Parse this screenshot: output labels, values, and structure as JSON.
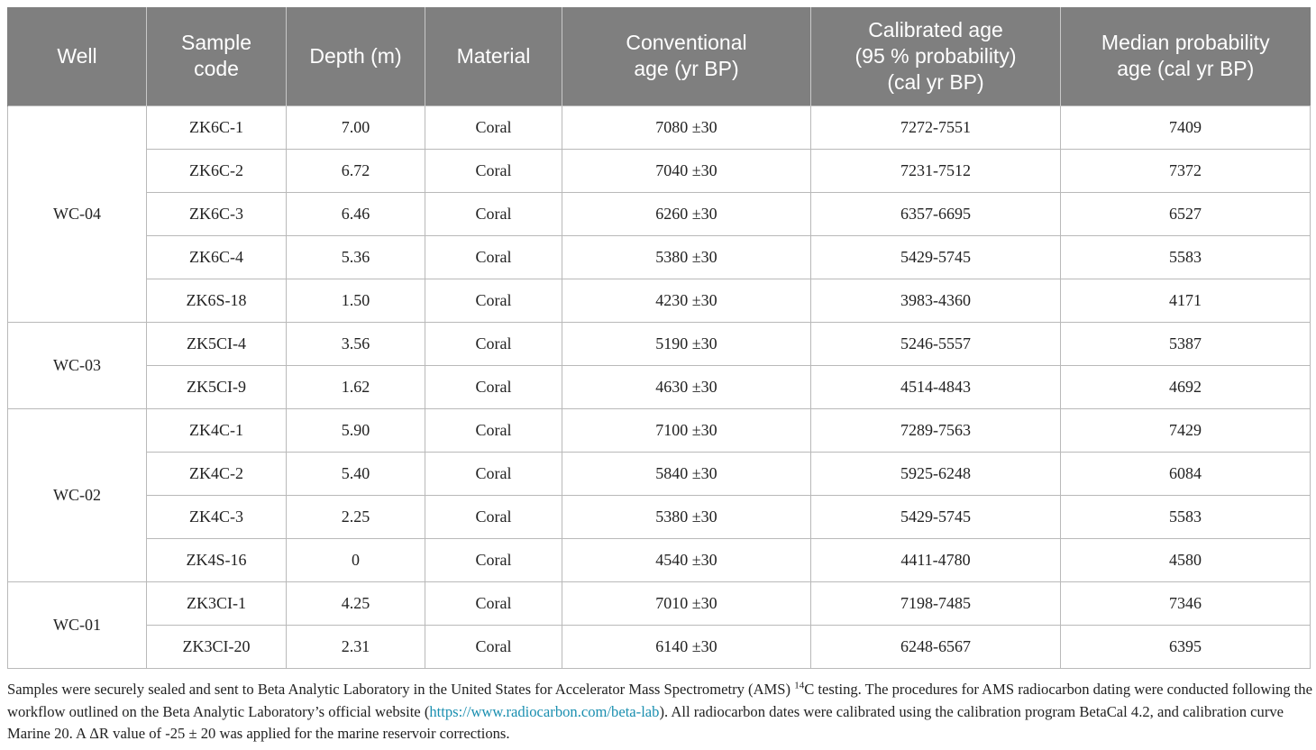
{
  "table": {
    "headers": [
      [
        "Well"
      ],
      [
        "Sample",
        "code"
      ],
      [
        "Depth (m)"
      ],
      [
        "Material"
      ],
      [
        "Conventional",
        "age (yr BP)"
      ],
      [
        "Calibrated age",
        "(95 % probability)",
        "(cal yr BP)"
      ],
      [
        "Median probability",
        "age (cal yr BP)"
      ]
    ],
    "groups": [
      {
        "well": "WC-04",
        "rows": [
          [
            "ZK6C-1",
            "7.00",
            "Coral",
            "7080 ±30",
            "7272-7551",
            "7409"
          ],
          [
            "ZK6C-2",
            "6.72",
            "Coral",
            "7040 ±30",
            "7231-7512",
            "7372"
          ],
          [
            "ZK6C-3",
            "6.46",
            "Coral",
            "6260 ±30",
            "6357-6695",
            "6527"
          ],
          [
            "ZK6C-4",
            "5.36",
            "Coral",
            "5380 ±30",
            "5429-5745",
            "5583"
          ],
          [
            "ZK6S-18",
            "1.50",
            "Coral",
            "4230 ±30",
            "3983-4360",
            "4171"
          ]
        ]
      },
      {
        "well": "WC-03",
        "rows": [
          [
            "ZK5CI-4",
            "3.56",
            "Coral",
            "5190 ±30",
            "5246-5557",
            "5387"
          ],
          [
            "ZK5CI-9",
            "1.62",
            "Coral",
            "4630 ±30",
            "4514-4843",
            "4692"
          ]
        ]
      },
      {
        "well": "WC-02",
        "rows": [
          [
            "ZK4C-1",
            "5.90",
            "Coral",
            "7100 ±30",
            "7289-7563",
            "7429"
          ],
          [
            "ZK4C-2",
            "5.40",
            "Coral",
            "5840 ±30",
            "5925-6248",
            "6084"
          ],
          [
            "ZK4C-3",
            "2.25",
            "Coral",
            "5380 ±30",
            "5429-5745",
            "5583"
          ],
          [
            "ZK4S-16",
            "0",
            "Coral",
            "4540 ±30",
            "4411-4780",
            "4580"
          ]
        ]
      },
      {
        "well": "WC-01",
        "rows": [
          [
            "ZK3CI-1",
            "4.25",
            "Coral",
            "7010 ±30",
            "7198-7485",
            "7346"
          ],
          [
            "ZK3CI-20",
            "2.31",
            "Coral",
            "6140 ±30",
            "6248-6567",
            "6395"
          ]
        ]
      }
    ]
  },
  "footnote": {
    "part1": "Samples were securely sealed and sent to Beta Analytic Laboratory in the United States for Accelerator Mass Spectrometry (AMS) ",
    "sup": "14",
    "part2": "C testing. The procedures for AMS radiocarbon dating were conducted following the workflow outlined on the Beta Analytic Laboratory’s official website (",
    "link": "https://www.radiocarbon.com/beta-lab",
    "part3": "). All radiocarbon dates were calibrated using the calibration program BetaCal 4.2, and calibration curve Marine 20. A ΔR value of -25 ± 20 was applied for the marine reservoir corrections."
  },
  "colors": {
    "header_bg": "#7f7f7f",
    "header_text": "#ffffff",
    "link": "#1a8fb0"
  }
}
